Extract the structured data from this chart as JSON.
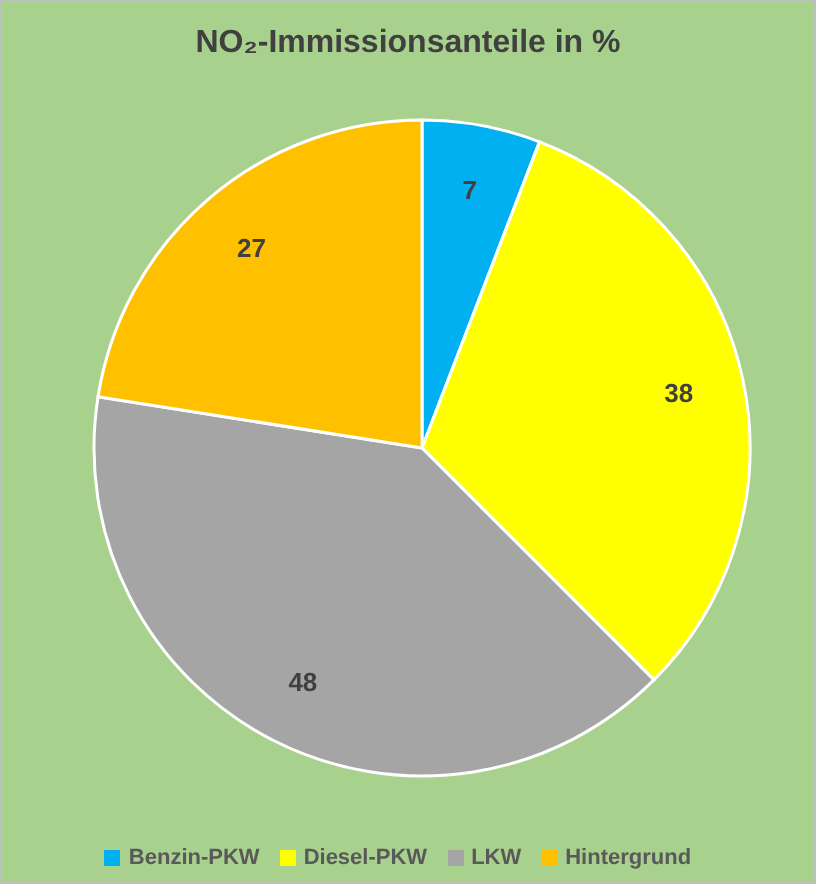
{
  "chart_data": {
    "type": "pie",
    "title": "NO₂-Immissionsanteile in %",
    "categories": [
      "Benzin-PKW",
      "Diesel-PKW",
      "LKW",
      "Hintergrund"
    ],
    "values": [
      7,
      38,
      48,
      27
    ],
    "colors": [
      "#00b0f0",
      "#ffff00",
      "#a5a5a5",
      "#ffc000"
    ],
    "data_labels": true,
    "legend": "bottom"
  }
}
